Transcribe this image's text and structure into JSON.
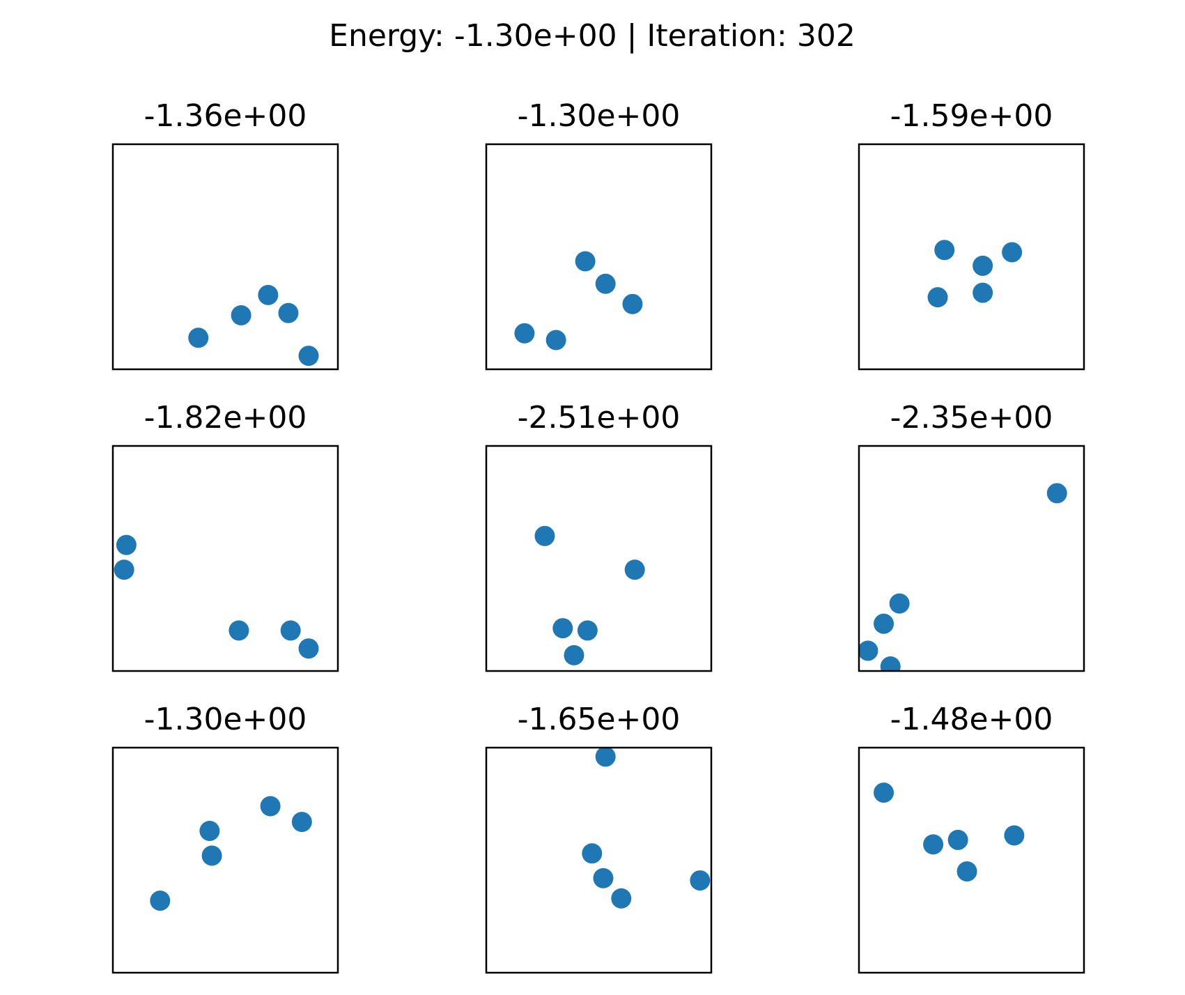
{
  "figure": {
    "suptitle": "Energy: -1.30e+00 | Iteration: 302",
    "marker_color": "#1f77b4"
  },
  "chart_data": [
    {
      "type": "scatter",
      "title": "-1.36e+00",
      "xlim": [
        0,
        1
      ],
      "ylim": [
        0,
        1
      ],
      "points": [
        {
          "x": 0.38,
          "y": 0.14
        },
        {
          "x": 0.57,
          "y": 0.24
        },
        {
          "x": 0.69,
          "y": 0.33
        },
        {
          "x": 0.78,
          "y": 0.25
        },
        {
          "x": 0.87,
          "y": 0.06
        }
      ]
    },
    {
      "type": "scatter",
      "title": "-1.30e+00",
      "xlim": [
        0,
        1
      ],
      "ylim": [
        0,
        1
      ],
      "points": [
        {
          "x": 0.17,
          "y": 0.16
        },
        {
          "x": 0.31,
          "y": 0.13
        },
        {
          "x": 0.44,
          "y": 0.48
        },
        {
          "x": 0.53,
          "y": 0.38
        },
        {
          "x": 0.65,
          "y": 0.29
        }
      ]
    },
    {
      "type": "scatter",
      "title": "-1.59e+00",
      "xlim": [
        0,
        1
      ],
      "ylim": [
        0,
        1
      ],
      "points": [
        {
          "x": 0.38,
          "y": 0.53
        },
        {
          "x": 0.55,
          "y": 0.46
        },
        {
          "x": 0.68,
          "y": 0.52
        },
        {
          "x": 0.35,
          "y": 0.32
        },
        {
          "x": 0.55,
          "y": 0.34
        }
      ]
    },
    {
      "type": "scatter",
      "title": "-1.82e+00",
      "xlim": [
        0,
        1
      ],
      "ylim": [
        0,
        1
      ],
      "points": [
        {
          "x": 0.06,
          "y": 0.56
        },
        {
          "x": 0.05,
          "y": 0.45
        },
        {
          "x": 0.56,
          "y": 0.18
        },
        {
          "x": 0.79,
          "y": 0.18
        },
        {
          "x": 0.87,
          "y": 0.1
        }
      ]
    },
    {
      "type": "scatter",
      "title": "-2.51e+00",
      "xlim": [
        0,
        1
      ],
      "ylim": [
        0,
        1
      ],
      "points": [
        {
          "x": 0.26,
          "y": 0.6
        },
        {
          "x": 0.66,
          "y": 0.45
        },
        {
          "x": 0.34,
          "y": 0.19
        },
        {
          "x": 0.45,
          "y": 0.18
        },
        {
          "x": 0.39,
          "y": 0.07
        }
      ]
    },
    {
      "type": "scatter",
      "title": "-2.35e+00",
      "xlim": [
        0,
        1
      ],
      "ylim": [
        0,
        1
      ],
      "points": [
        {
          "x": 0.88,
          "y": 0.79
        },
        {
          "x": 0.18,
          "y": 0.3
        },
        {
          "x": 0.11,
          "y": 0.21
        },
        {
          "x": 0.04,
          "y": 0.09
        },
        {
          "x": 0.14,
          "y": 0.02
        }
      ]
    },
    {
      "type": "scatter",
      "title": "-1.30e+00",
      "xlim": [
        0,
        1
      ],
      "ylim": [
        0,
        1
      ],
      "points": [
        {
          "x": 0.7,
          "y": 0.74
        },
        {
          "x": 0.84,
          "y": 0.67
        },
        {
          "x": 0.43,
          "y": 0.63
        },
        {
          "x": 0.44,
          "y": 0.52
        },
        {
          "x": 0.21,
          "y": 0.32
        }
      ]
    },
    {
      "type": "scatter",
      "title": "-1.65e+00",
      "xlim": [
        0,
        1
      ],
      "ylim": [
        0,
        1
      ],
      "points": [
        {
          "x": 0.53,
          "y": 0.96
        },
        {
          "x": 0.47,
          "y": 0.53
        },
        {
          "x": 0.52,
          "y": 0.42
        },
        {
          "x": 0.6,
          "y": 0.33
        },
        {
          "x": 0.95,
          "y": 0.41
        }
      ]
    },
    {
      "type": "scatter",
      "title": "-1.48e+00",
      "xlim": [
        0,
        1
      ],
      "ylim": [
        0,
        1
      ],
      "points": [
        {
          "x": 0.11,
          "y": 0.8
        },
        {
          "x": 0.33,
          "y": 0.57
        },
        {
          "x": 0.44,
          "y": 0.59
        },
        {
          "x": 0.69,
          "y": 0.61
        },
        {
          "x": 0.48,
          "y": 0.45
        }
      ]
    }
  ]
}
